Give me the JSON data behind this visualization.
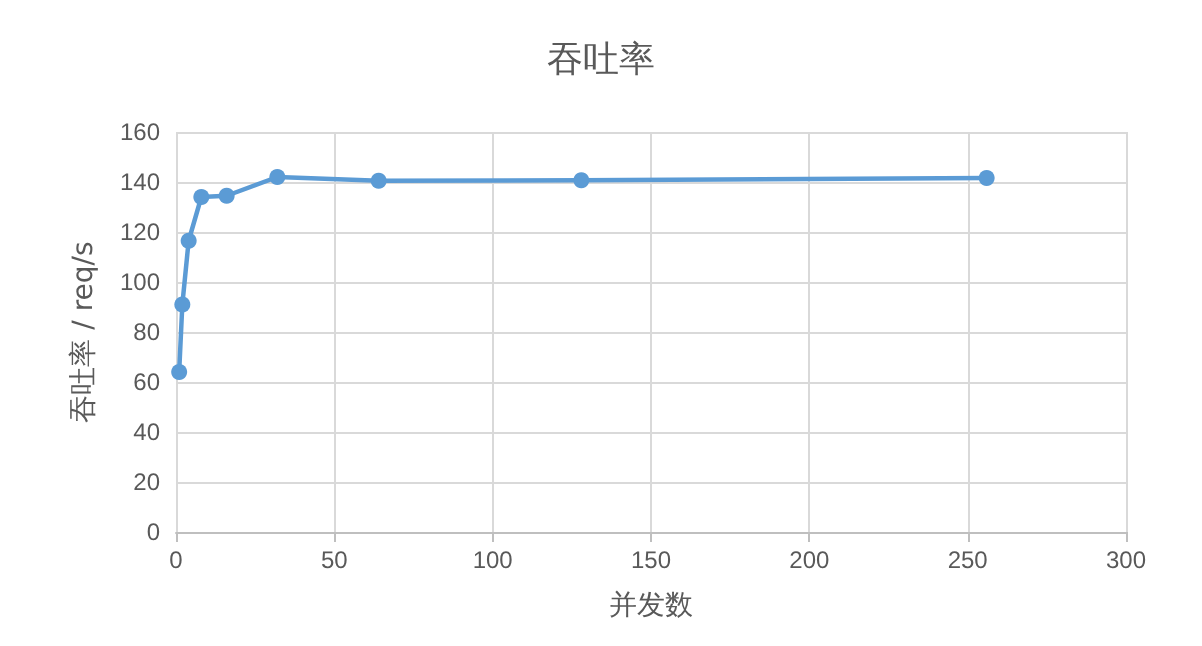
{
  "chart_data": {
    "type": "line",
    "title": "吞吐率",
    "xlabel": "并发数",
    "ylabel": "吞吐率 / req/s",
    "x": [
      1,
      2,
      4,
      8,
      16,
      32,
      64,
      128,
      256
    ],
    "series": [
      {
        "color": "#5b9bd5",
        "values": [
          64,
          91,
          116.5,
          134,
          134.5,
          142,
          140.5,
          140.7,
          141.6
        ]
      }
    ],
    "xlim": [
      0,
      300
    ],
    "xticks": [
      0,
      50,
      100,
      150,
      200,
      250,
      300
    ],
    "ylim": [
      0,
      160
    ],
    "yticks": [
      0,
      20,
      40,
      60,
      80,
      100,
      120,
      140,
      160
    ],
    "grid": true,
    "marker": "circle",
    "line_style": "solid"
  }
}
